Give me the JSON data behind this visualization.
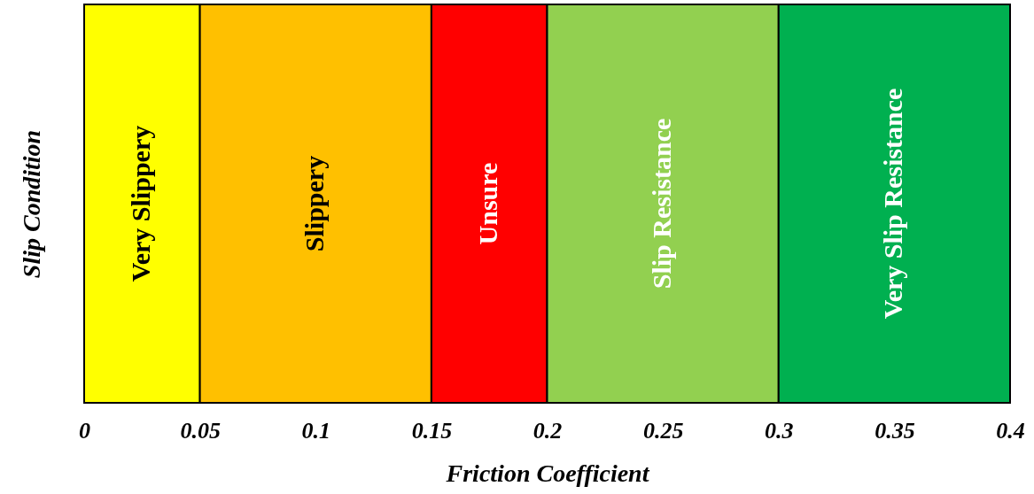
{
  "chart_data": {
    "type": "bar",
    "orientation": "horizontal",
    "stacked": true,
    "categories": [
      null
    ],
    "xlabel": "Friction Coefficient",
    "ylabel": "Slip Condition",
    "xlim": [
      0,
      0.4
    ],
    "xticks": [
      0,
      0.05,
      0.1,
      0.15,
      0.2,
      0.25,
      0.3,
      0.35,
      0.4
    ],
    "legend": false,
    "series": [
      {
        "name": "Very Slippery",
        "color": "#ffff00",
        "values": [
          0.05
        ]
      },
      {
        "name": "Slippery",
        "color": "#ffc000",
        "values": [
          0.1
        ]
      },
      {
        "name": "Unsure",
        "color": "#ff0000",
        "values": [
          0.05
        ]
      },
      {
        "name": "Slip Resistance",
        "color": "#92d050",
        "values": [
          0.1
        ]
      },
      {
        "name": "Very Slip Resistance",
        "color": "#00b050",
        "values": [
          0.1
        ]
      }
    ]
  }
}
